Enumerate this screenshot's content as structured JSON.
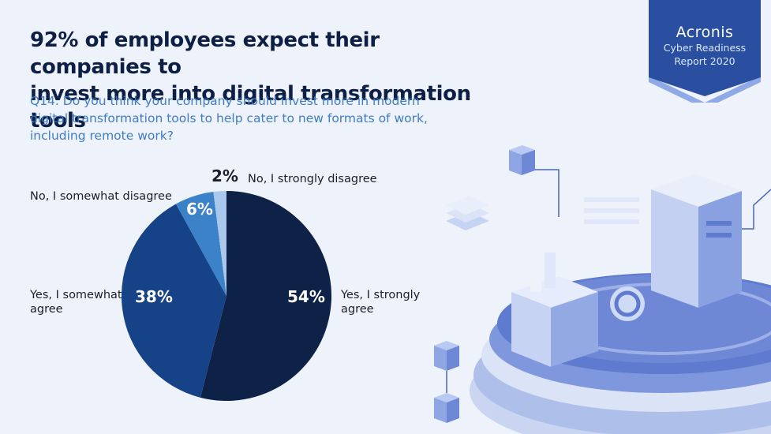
{
  "header": {
    "title_line1": "92% of employees expect their companies to",
    "title_line2": "invest more into digital transformation tools",
    "question": "Q14. Do you think your company should invest more in modern digital transformation tools to help cater to new formats of work, including remote work?"
  },
  "badge": {
    "brand": "Acronis",
    "line1": "Cyber Readiness",
    "line2": "Report 2020"
  },
  "chart_data": {
    "type": "pie",
    "categories": [
      "Yes, I strongly agree",
      "Yes, I somewhat agree",
      "No, I somewhat disagree",
      "No, I strongly disagree"
    ],
    "values": [
      54,
      38,
      6,
      2
    ],
    "value_labels": [
      "54%",
      "38%",
      "6%",
      "2%"
    ],
    "colors": [
      "#0e2147",
      "#164287",
      "#3c82c8",
      "#a9c8ec"
    ],
    "label_colors": [
      "#ffffff",
      "#ffffff",
      "#ffffff",
      "#1a1f2e"
    ],
    "legend": "labels beside slices"
  },
  "colors": {
    "background": "#eef2fa",
    "title": "#0e1f45",
    "question": "#3f7dc6",
    "badge": "#2a4fa0"
  }
}
